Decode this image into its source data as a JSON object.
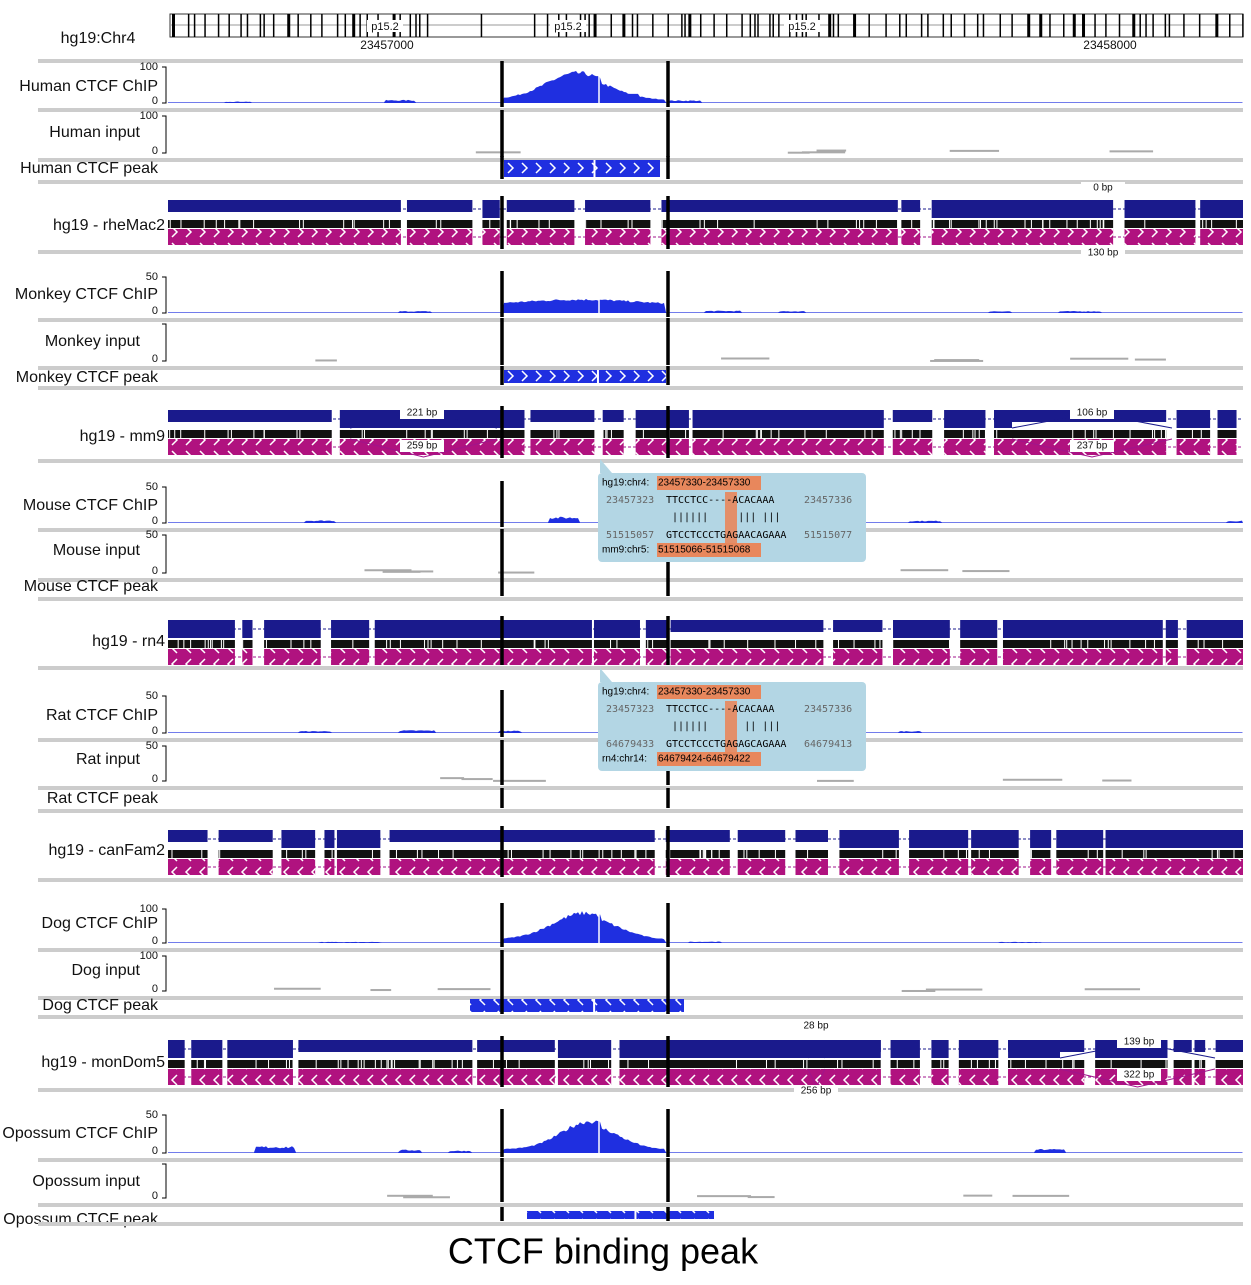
{
  "header": {
    "label": "hg19:Chr4",
    "bands": [
      "p15.2",
      "p15.2",
      "p15.2"
    ],
    "positions": [
      "23457000",
      "23458000"
    ]
  },
  "tracks": [
    {
      "label": "Human CTCF ChIP",
      "max": 100,
      "min": 0
    },
    {
      "label": "Human input",
      "max": 100,
      "min": 0
    },
    {
      "label": "Human CTCF peak"
    },
    {
      "label": "hg19 - rheMac2",
      "annotations": [
        "0 bp",
        "130 bp"
      ]
    },
    {
      "label": "Monkey CTCF ChIP",
      "max": 50,
      "min": 0
    },
    {
      "label": "Monkey input",
      "min": 0
    },
    {
      "label": "Monkey CTCF peak"
    },
    {
      "label": "hg19 - mm9",
      "annotations": [
        "221 bp",
        "259 bp",
        "106 bp",
        "237 bp"
      ]
    },
    {
      "label": "Mouse CTCF ChIP",
      "max": 50,
      "min": 0
    },
    {
      "label": "Mouse input",
      "max": 50,
      "min": 0
    },
    {
      "label": "Mouse CTCF peak"
    },
    {
      "label": "hg19 - rn4"
    },
    {
      "label": "Rat CTCF ChIP",
      "max": 50,
      "min": 0
    },
    {
      "label": "Rat input",
      "max": 50,
      "min": 0
    },
    {
      "label": "Rat CTCF peak"
    },
    {
      "label": "hg19 - canFam2"
    },
    {
      "label": "Dog CTCF ChIP",
      "max": 100,
      "min": 0
    },
    {
      "label": "Dog input",
      "max": 100,
      "min": 0
    },
    {
      "label": "Dog CTCF peak"
    },
    {
      "label": "hg19 - monDom5",
      "annotations": [
        "28 bp",
        "256 bp",
        "139 bp",
        "322 bp"
      ]
    },
    {
      "label": "Opossum CTCF ChIP",
      "max": 50,
      "min": 0
    },
    {
      "label": "Opossum input",
      "min": 0
    },
    {
      "label": "Opossum CTCF peak"
    }
  ],
  "tooltips": [
    {
      "query": "hg19:chr4:",
      "query_range": "23457330-23457330",
      "top_start": "23457323",
      "top_seq": "TTCCTCC----ACACAAA",
      "top_end": "23457336",
      "match": "||||||     ||| |||",
      "bottom_start": "51515057",
      "bottom_seq": "GTCCTCCCTGAGAACAGAAA",
      "bottom_end": "51515077",
      "target": "mm9:chr5:",
      "target_range": "51515066-51515068"
    },
    {
      "query": "hg19:chr4:",
      "query_range": "23457330-23457330",
      "top_start": "23457323",
      "top_seq": "TTCCTCC----ACACAAA",
      "top_end": "23457336",
      "match": "||||||      || |||",
      "bottom_start": "64679433",
      "bottom_seq": "GTCCTCCCTGAGAGCAGAAA",
      "bottom_end": "64679413",
      "target": "rn4:chr14:",
      "target_range": "64679424-64679422"
    }
  ],
  "caption": "CTCF binding peak"
}
